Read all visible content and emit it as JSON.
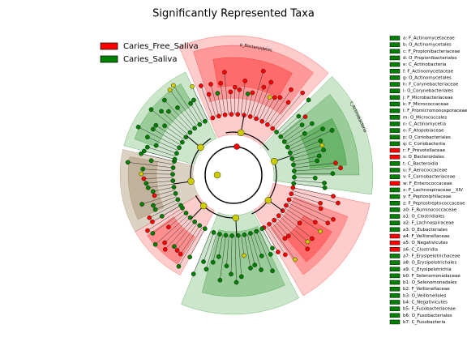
{
  "title": "Significantly Represented Taxa",
  "legend": [
    {
      "label": "Caries_Free_Saliva",
      "color": "#ff0000"
    },
    {
      "label": "Caries_Saliva",
      "color": "#008000"
    }
  ],
  "sector_labels": [
    "p_Bacteroidetes",
    "c_Actinobacteria"
  ],
  "taxa": [
    {
      "label": "a: F_Actinomycetaceae",
      "color": "#008000"
    },
    {
      "label": "b: O_Actinomycetales",
      "color": "#008000"
    },
    {
      "label": "c: F_Propionibacteriaceae",
      "color": "#008000"
    },
    {
      "label": "d: O_Propionibacteriales",
      "color": "#008000"
    },
    {
      "label": "e: C_Actinobacteria",
      "color": "#008000"
    },
    {
      "label": "f: F_Actinomycetaceae",
      "color": "#008000"
    },
    {
      "label": "g: O_Actinomycetales",
      "color": "#008000"
    },
    {
      "label": "h: F_Corynebacteriaceae",
      "color": "#008000"
    },
    {
      "label": "i: O_Corynebacteriales",
      "color": "#008000"
    },
    {
      "label": "j: F_Microbacteriaceae",
      "color": "#008000"
    },
    {
      "label": "k: F_Micrococcaceae",
      "color": "#008000"
    },
    {
      "label": "l: F_Promicromonosporaceae",
      "color": "#008000"
    },
    {
      "label": "m: O_Micrococcales",
      "color": "#008000"
    },
    {
      "label": "n: C_Actinomycetia",
      "color": "#008000"
    },
    {
      "label": "o: F_Atopobiaceae",
      "color": "#008000"
    },
    {
      "label": "p: O_Coriobacteriales",
      "color": "#008000"
    },
    {
      "label": "q: C_Coriobacteriia",
      "color": "#008000"
    },
    {
      "label": "r: F_Prevotellaceae",
      "color": "#ff0000"
    },
    {
      "label": "s: O_Bacteroidales",
      "color": "#ff0000"
    },
    {
      "label": "t: C_Bacteroidia",
      "color": "#008000"
    },
    {
      "label": "u: F_Aerococcaceae",
      "color": "#008000"
    },
    {
      "label": "v: F_Carnobacteriaceae",
      "color": "#008000"
    },
    {
      "label": "w: F_Enterococcaceae",
      "color": "#ff0000"
    },
    {
      "label": "x: F_Lachnospiraceae__XIV",
      "color": "#008000"
    },
    {
      "label": "y: F_Peptoniphilaceae",
      "color": "#008000"
    },
    {
      "label": "z: F_Peptostreptococcaceae",
      "color": "#008000"
    },
    {
      "label": "a0: F_Ruminococcaceae",
      "color": "#008000"
    },
    {
      "label": "a1: O_Clostridiales",
      "color": "#008000"
    },
    {
      "label": "a2: F_Lachnospiraceae",
      "color": "#008000"
    },
    {
      "label": "a3: O_Eubacteriales",
      "color": "#008000"
    },
    {
      "label": "a4: F_Veillonellaceae",
      "color": "#ff0000"
    },
    {
      "label": "a5: O_Negativicutes",
      "color": "#ff0000"
    },
    {
      "label": "a6: C_Clostridia",
      "color": "#ff0000"
    },
    {
      "label": "a7: F_Erysipelotrichaceae",
      "color": "#008000"
    },
    {
      "label": "a8: O_Erysipelotrichales",
      "color": "#008000"
    },
    {
      "label": "a9: C_Erysipelotrichia",
      "color": "#008000"
    },
    {
      "label": "b0: F_Selenomonadaceae",
      "color": "#008000"
    },
    {
      "label": "b1: O_Selenomonadales",
      "color": "#008000"
    },
    {
      "label": "b2: F_Veillonellaceae",
      "color": "#008000"
    },
    {
      "label": "b3: O_Veillonellales",
      "color": "#008000"
    },
    {
      "label": "b4: C_Negativicutes",
      "color": "#008000"
    },
    {
      "label": "b5: F_Fusobacteriaceae",
      "color": "#008000"
    },
    {
      "label": "b6: O_Fusobacteriales",
      "color": "#008000"
    },
    {
      "label": "b7: C_Fusobacteria",
      "color": "#008000"
    }
  ]
}
